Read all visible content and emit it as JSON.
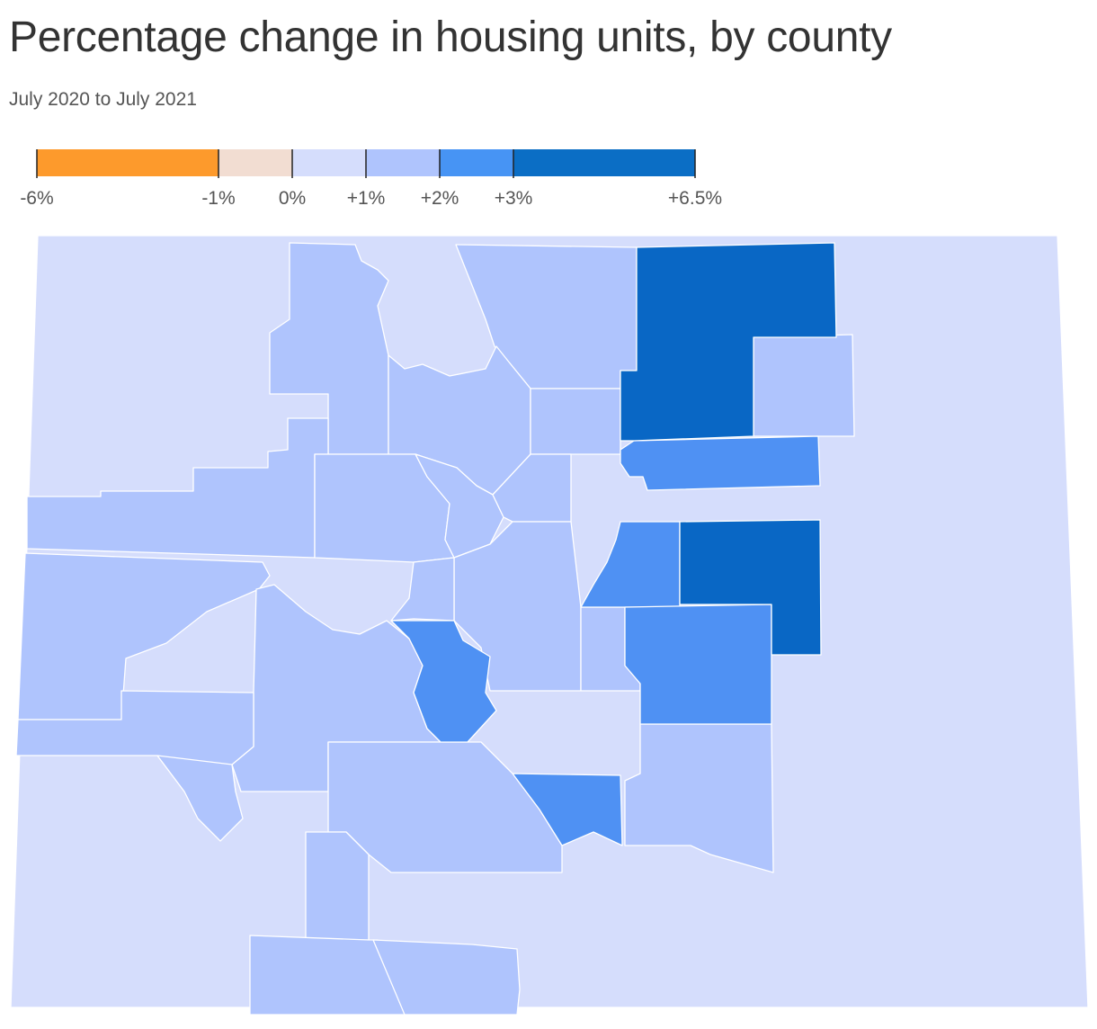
{
  "title": "Percentage change in housing units, by county",
  "subtitle": "July 2020 to July 2021",
  "legend": {
    "breaks": [
      -6,
      -1,
      0,
      1,
      2,
      3,
      6.5
    ],
    "labels": [
      "-6%",
      "-1%",
      "0%",
      "+1%",
      "+2%",
      "+3%",
      "+6.5%"
    ],
    "colors": [
      "#fd9a2c",
      "#f2ddd2",
      "#d5ddfc",
      "#afc4fd",
      "#4794f4",
      "#0b6ec5"
    ]
  },
  "map": {
    "region": "Colorado",
    "unit": "county",
    "bins": [
      {
        "range": "0% to +1%",
        "color": "#d5ddfc"
      },
      {
        "range": "+1% to +2%",
        "color": "#afc4fd"
      },
      {
        "range": "+2% to +3%",
        "color": "#4f91f3"
      },
      {
        "range": "+3% to +6.5%",
        "color": "#0967c5"
      }
    ]
  }
}
